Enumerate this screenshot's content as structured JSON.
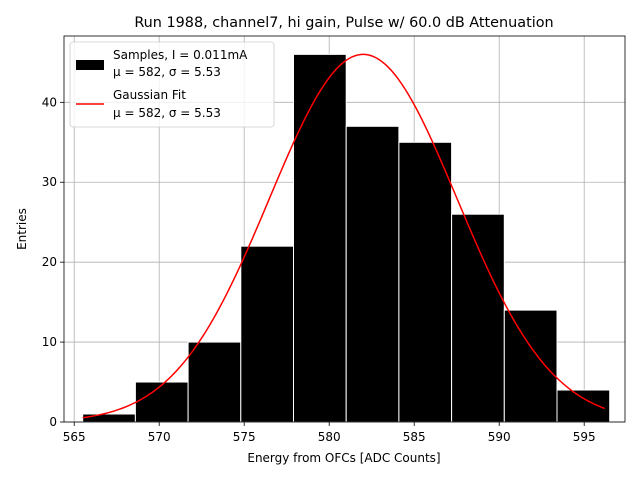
{
  "chart_data": {
    "type": "bar",
    "title": "Run 1988, channel7, hi gain, Pulse w/ 60.0 dB Attenuation",
    "xlabel": "Energy from OFCs [ADC Counts]",
    "ylabel": "Entries",
    "xlim": [
      564.4,
      597.4
    ],
    "ylim": [
      0,
      48.3
    ],
    "xticks": [
      565,
      570,
      575,
      580,
      585,
      590,
      595
    ],
    "yticks": [
      0,
      10,
      20,
      30,
      40
    ],
    "grid": true,
    "bins": {
      "edges": [
        565.5,
        568.6,
        571.7,
        574.8,
        577.9,
        581.0,
        584.1,
        587.2,
        590.3,
        593.4,
        596.5
      ],
      "counts": [
        1,
        5,
        10,
        22,
        46,
        37,
        35,
        26,
        14,
        4
      ]
    },
    "fit": {
      "mu": 582,
      "sigma": 5.53,
      "amplitude": 46,
      "x_range": [
        565.5,
        596.2
      ]
    },
    "colors": {
      "bars": "#000000",
      "bar_edge": "#ffffff",
      "fit": "#ff0000",
      "grid": "#b0b0b0"
    },
    "legend": {
      "placement": "upper-left",
      "entries": [
        {
          "line1": "Samples, I = 0.011mA",
          "line2": "μ = 582, σ = 5.53"
        },
        {
          "line1": "Gaussian Fit",
          "line2": "μ = 582, σ = 5.53"
        }
      ]
    }
  }
}
